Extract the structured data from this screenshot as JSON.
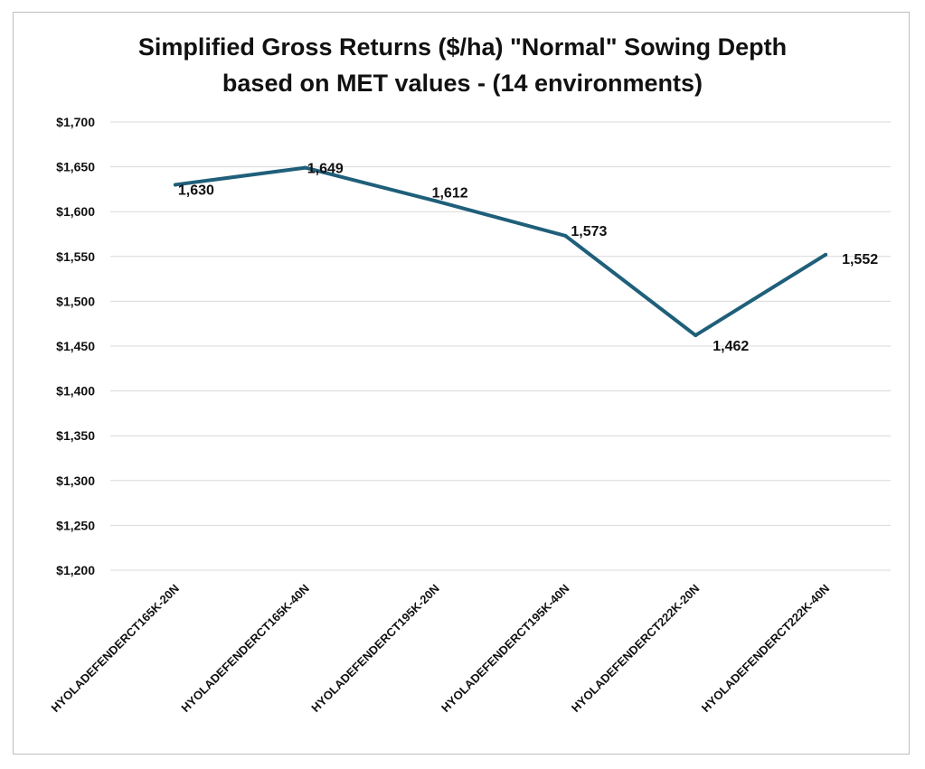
{
  "chart_data": {
    "type": "line",
    "title_lines": [
      "Simplified Gross Returns ($/ha) \"Normal\" Sowing Depth",
      "based on MET values - (14 environments)"
    ],
    "categories": [
      "HYOLADEFENDERCT165K-20N",
      "HYOLADEFENDERCT165K-40N",
      "HYOLADEFENDERCT195K-20N",
      "HYOLADEFENDERCT195K-40N",
      "HYOLADEFENDERCT222K-20N",
      "HYOLADEFENDERCT222K-40N"
    ],
    "values": [
      1630,
      1649,
      1612,
      1573,
      1462,
      1552
    ],
    "data_labels": [
      "1,630",
      "1,649",
      "1,612",
      "1,573",
      "1,462",
      "1,552"
    ],
    "y_ticks": [
      1200,
      1250,
      1300,
      1350,
      1400,
      1450,
      1500,
      1550,
      1600,
      1650,
      1700
    ],
    "y_tick_labels": [
      "$1,200",
      "$1,250",
      "$1,300",
      "$1,350",
      "$1,400",
      "$1,450",
      "$1,500",
      "$1,550",
      "$1,600",
      "$1,650",
      "$1,700"
    ],
    "ylim": [
      1200,
      1700
    ],
    "grid": true,
    "legend": "none",
    "line_color": "#1f5f7a",
    "xlabel": "",
    "ylabel": ""
  }
}
